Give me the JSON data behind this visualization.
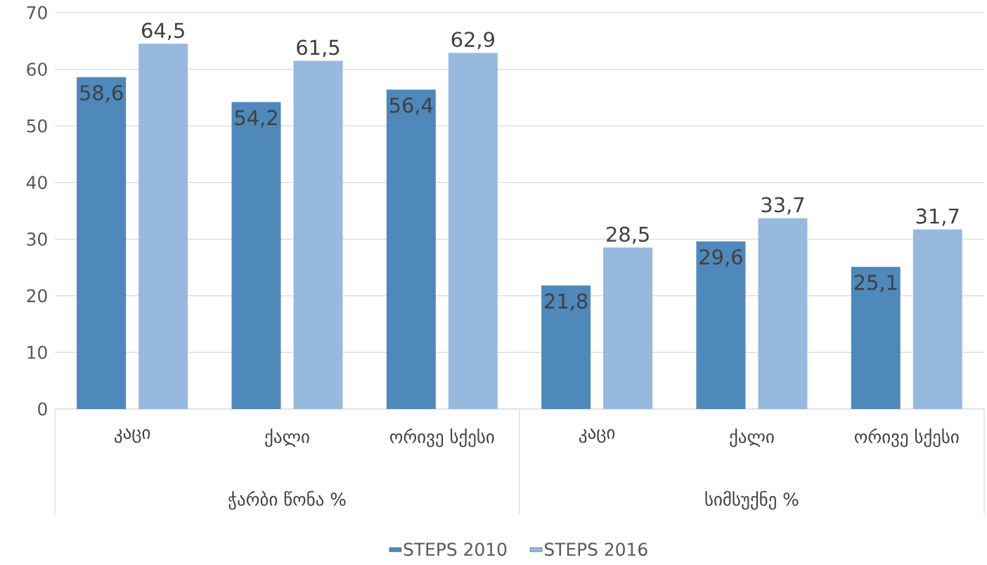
{
  "chart_data": {
    "type": "bar",
    "categories": [
      "კაცი",
      "ქალი",
      "ორივე სქესი",
      "კაცი",
      "ქალი",
      "ორივე სქესი"
    ],
    "series": [
      {
        "name": "STEPS 2010",
        "color": "#4f88bb",
        "values": [
          58.6,
          54.2,
          56.4,
          21.8,
          29.6,
          25.1
        ],
        "value_labels": [
          "58,6",
          "54,2",
          "56,4",
          "21,8",
          "29,6",
          "25,1"
        ]
      },
      {
        "name": "STEPS 2016",
        "color": "#98b9de",
        "values": [
          64.5,
          61.5,
          62.9,
          28.5,
          33.7,
          31.7
        ],
        "value_labels": [
          "64,5",
          "61,5",
          "62,9",
          "28,5",
          "33,7",
          "31,7"
        ]
      }
    ],
    "annotations": [
      "ჭარბი წონა %",
      "სიმსუქნე %"
    ],
    "ylim": [
      0,
      70
    ],
    "yticks": [
      0,
      10,
      20,
      30,
      40,
      50,
      60,
      70
    ],
    "grid": "y",
    "legend": "bottom"
  }
}
